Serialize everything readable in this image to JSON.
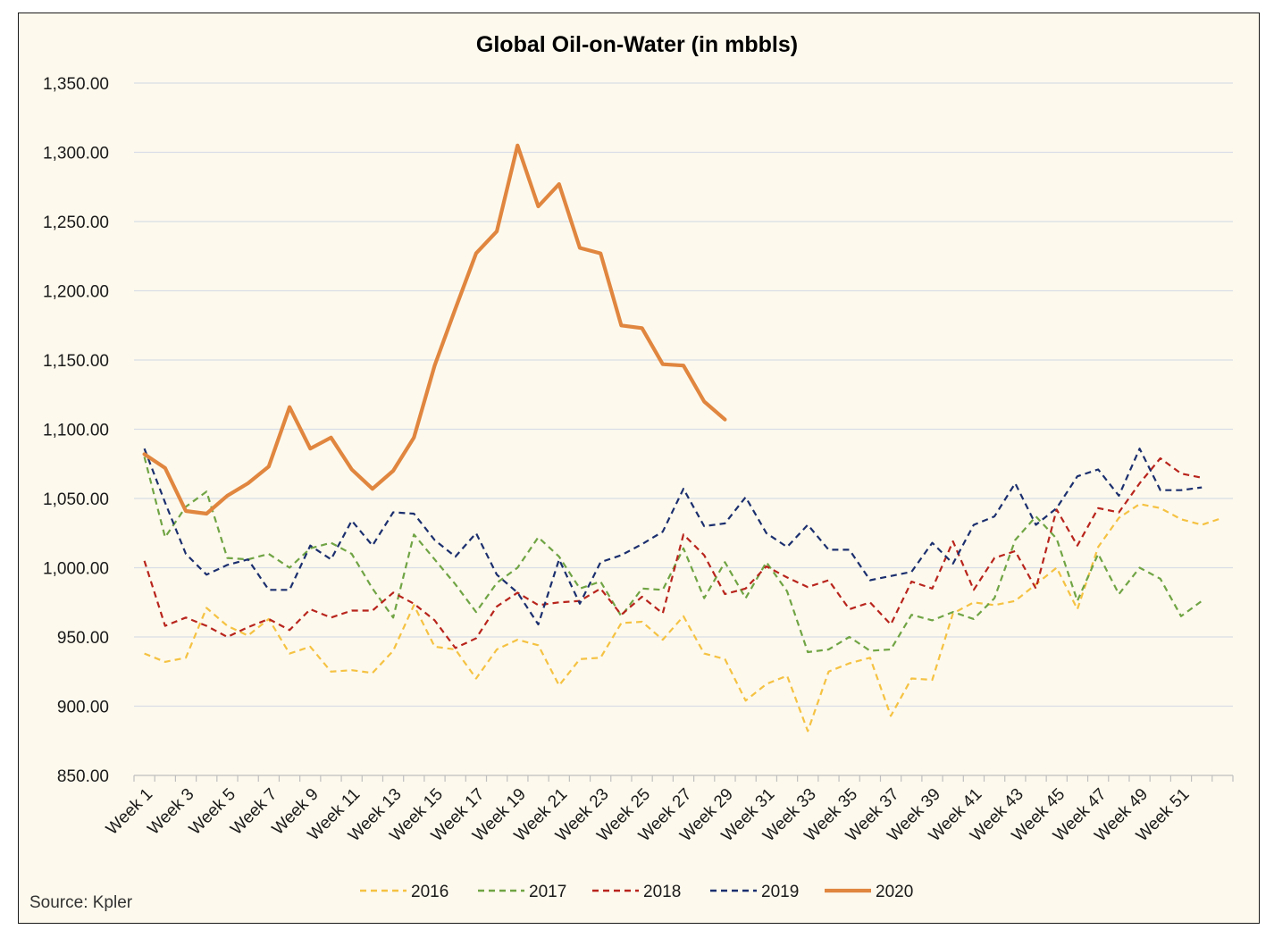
{
  "chart_data": {
    "type": "line",
    "title": "Global Oil-on-Water (in mbbls)",
    "source": "Source: Kpler",
    "xlabel": "",
    "ylabel": "",
    "ylim": [
      850,
      1350
    ],
    "y_ticks": [
      850,
      900,
      950,
      1000,
      1050,
      1100,
      1150,
      1200,
      1250,
      1300,
      1350
    ],
    "y_tick_labels": [
      "850.00",
      "900.00",
      "950.00",
      "1,000.00",
      "1,050.00",
      "1,100.00",
      "1,150.00",
      "1,200.00",
      "1,250.00",
      "1,300.00",
      "1,350.00"
    ],
    "x_tick_labels": [
      "Week 1",
      "Week 3",
      "Week 5",
      "Week 7",
      "Week 9",
      "Week 11",
      "Week 13",
      "Week 15",
      "Week 17",
      "Week 19",
      "Week 21",
      "Week 23",
      "Week 25",
      "Week 27",
      "Week 29",
      "Week 31",
      "Week 33",
      "Week 35",
      "Week 37",
      "Week 39",
      "Week 41",
      "Week 43",
      "Week 45",
      "Week 47",
      "Week 49",
      "Week 51"
    ],
    "n_weeks": 53,
    "grid": "horizontal",
    "legend_position": "bottom",
    "series": [
      {
        "name": "2016",
        "color": "#f5c242",
        "style": "dashed",
        "values": [
          938,
          932,
          935,
          971,
          958,
          951,
          963,
          938,
          943,
          925,
          926,
          924,
          940,
          973,
          943,
          941,
          920,
          941,
          948,
          944,
          915,
          934,
          935,
          960,
          961,
          948,
          965,
          938,
          934,
          904,
          916,
          922,
          882,
          925,
          931,
          935,
          893,
          920,
          919,
          967,
          975,
          973,
          976,
          988,
          1000,
          970,
          1015,
          1036,
          1046,
          1043,
          1035,
          1031,
          1036
        ]
      },
      {
        "name": "2017",
        "color": "#70a444",
        "style": "dashed",
        "values": [
          1080,
          1022,
          1044,
          1055,
          1007,
          1006,
          1010,
          1000,
          1014,
          1018,
          1010,
          985,
          964,
          1024,
          1006,
          988,
          968,
          989,
          1000,
          1022,
          1008,
          985,
          990,
          965,
          985,
          984,
          1014,
          978,
          1004,
          978,
          1004,
          983,
          939,
          941,
          950,
          940,
          941,
          966,
          962,
          968,
          963,
          978,
          1020,
          1037,
          1021,
          976,
          1010,
          981,
          1000,
          992,
          965,
          976
        ]
      },
      {
        "name": "2018",
        "color": "#b8241c",
        "style": "dashed",
        "values": [
          1005,
          958,
          964,
          958,
          950,
          957,
          963,
          955,
          970,
          964,
          969,
          969,
          982,
          974,
          962,
          942,
          949,
          972,
          982,
          973,
          975,
          976,
          985,
          966,
          979,
          967,
          1024,
          1009,
          981,
          985,
          1001,
          993,
          986,
          991,
          970,
          975,
          959,
          990,
          985,
          1019,
          984,
          1007,
          1012,
          985,
          1042,
          1016,
          1043,
          1040,
          1061,
          1079,
          1068,
          1065
        ]
      },
      {
        "name": "2019",
        "color": "#1b2f6e",
        "style": "dashed",
        "values": [
          1086,
          1047,
          1010,
          995,
          1002,
          1006,
          984,
          984,
          1016,
          1006,
          1034,
          1016,
          1040,
          1039,
          1020,
          1008,
          1025,
          995,
          982,
          959,
          1006,
          974,
          1004,
          1009,
          1017,
          1026,
          1057,
          1030,
          1032,
          1051,
          1025,
          1015,
          1031,
          1013,
          1013,
          991,
          994,
          997,
          1018,
          1003,
          1031,
          1037,
          1061,
          1031,
          1043,
          1066,
          1071,
          1052,
          1086,
          1056,
          1056,
          1058
        ]
      },
      {
        "name": "2020",
        "color": "#e0863f",
        "style": "solid",
        "values": [
          1082,
          1072,
          1041,
          1039,
          1052,
          1061,
          1073,
          1116,
          1086,
          1094,
          1071,
          1057,
          1070,
          1094,
          1146,
          1187,
          1227,
          1243,
          1305,
          1261,
          1277,
          1231,
          1227,
          1175,
          1173,
          1147,
          1146,
          1120,
          1107
        ]
      }
    ]
  }
}
